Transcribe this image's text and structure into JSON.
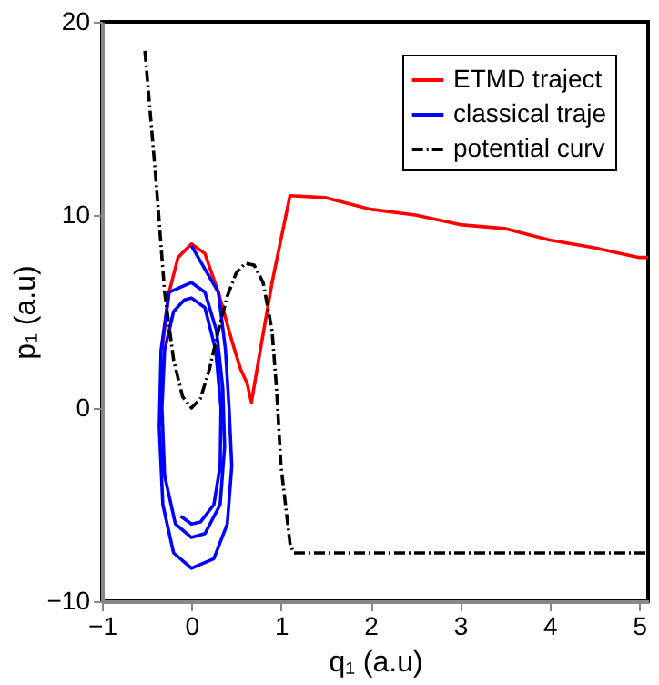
{
  "chart_data": {
    "type": "line",
    "xlabel": "q₁ (a.u)",
    "ylabel": "p₁ (a.u)",
    "xlim": [
      -1,
      5.1
    ],
    "ylim": [
      -10,
      20
    ],
    "xticks": [
      -1,
      0,
      1,
      2,
      3,
      4,
      5
    ],
    "yticks": [
      -10,
      0,
      10,
      20
    ],
    "grid": false,
    "legend": "top right",
    "marker": "none",
    "series": [
      {
        "name": "ETMD traject",
        "color": "#ff0000",
        "line_style": "solid",
        "x": [
          -0.33,
          -0.25,
          -0.15,
          0,
          0.15,
          0.3,
          0.45,
          0.55,
          0.62,
          0.67,
          0.75,
          0.9,
          1.1,
          1.5,
          2,
          2.5,
          3,
          3.5,
          4,
          4.5,
          5,
          5.1
        ],
        "values": [
          3,
          6,
          7.8,
          8.5,
          8,
          6,
          3.5,
          2,
          1.3,
          0.3,
          2.5,
          6.5,
          11,
          10.9,
          10.3,
          10,
          9.5,
          9.3,
          8.7,
          8.3,
          7.8,
          7.8
        ]
      },
      {
        "name": "classical traje",
        "color": "#0000ff",
        "line_style": "solid",
        "x": [
          0,
          0.3,
          0.38,
          0.42,
          0.45,
          0.4,
          0.25,
          0,
          -0.2,
          -0.32,
          -0.36,
          -0.34,
          -0.25,
          -0.1,
          0,
          0.15,
          0.28,
          0.35,
          0.37,
          0.32,
          0.15,
          0,
          -0.18,
          -0.3,
          -0.33,
          -0.3,
          -0.2,
          -0.08,
          0,
          0.15,
          0.27,
          0.33,
          0.32,
          0.25,
          0.1,
          0,
          -0.12
        ],
        "values": [
          8.4,
          6,
          3,
          0,
          -3,
          -6,
          -7.8,
          -8.3,
          -7.5,
          -5,
          -1,
          3,
          6,
          6.3,
          6.5,
          6,
          4,
          1,
          -2,
          -5,
          -6.5,
          -6.7,
          -6,
          -3.5,
          0,
          3,
          5,
          5.6,
          5.7,
          5.2,
          3,
          0,
          -3,
          -5,
          -5.9,
          -6,
          -5.6
        ]
      },
      {
        "name": "potential curv",
        "color": "#000000",
        "line_style": "dashed",
        "x": [
          -0.52,
          -0.4,
          -0.3,
          -0.2,
          -0.1,
          0,
          0.1,
          0.2,
          0.3,
          0.4,
          0.5,
          0.6,
          0.7,
          0.8,
          0.9,
          0.95,
          1.0,
          1.1,
          1.14,
          5.1
        ],
        "values": [
          18.5,
          12,
          6,
          2.5,
          0.6,
          0,
          0.5,
          2,
          4,
          5.8,
          7,
          7.5,
          7.4,
          6.5,
          4,
          1,
          -3,
          -7,
          -7.5,
          -7.5
        ]
      }
    ]
  }
}
